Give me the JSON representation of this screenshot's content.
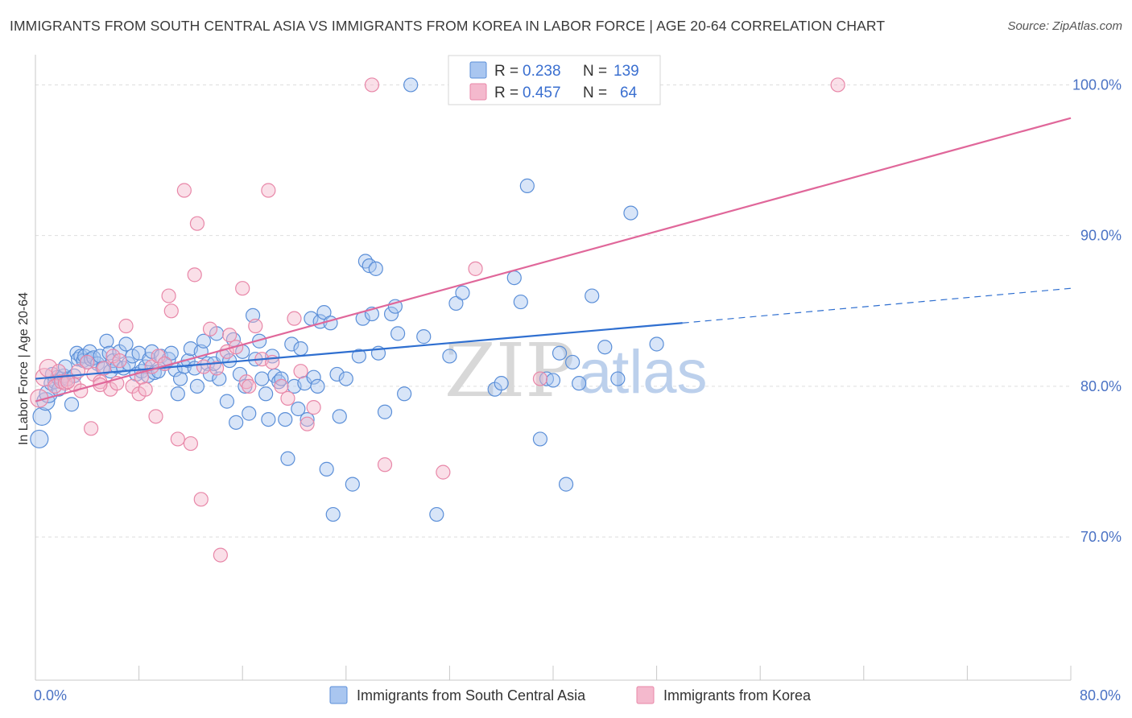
{
  "title": "IMMIGRANTS FROM SOUTH CENTRAL ASIA VS IMMIGRANTS FROM KOREA IN LABOR FORCE | AGE 20-64 CORRELATION CHART",
  "source": "Source: ZipAtlas.com",
  "watermark": {
    "part1": "ZIP",
    "part2": "atlas"
  },
  "colors": {
    "blue": "#5b8fd8",
    "blue_fill": "#a9c6f0",
    "pink": "#e887a8",
    "pink_fill": "#f4b9cd",
    "blue_line": "#2f6fd0",
    "pink_line": "#e0679a"
  },
  "legend_top": {
    "rows": [
      {
        "r_label": "R =",
        "r_value": "0.238",
        "n_label": "N =",
        "n_value": "139"
      },
      {
        "r_label": "R =",
        "r_value": "0.457",
        "n_label": "N =",
        "n_value": "64"
      }
    ]
  },
  "chart_data": {
    "type": "scatter",
    "title": "IMMIGRANTS FROM SOUTH CENTRAL ASIA VS IMMIGRANTS FROM KOREA IN LABOR FORCE | AGE 20-64 CORRELATION CHART",
    "xlabel": "",
    "ylabel": "In Labor Force | Age 20-64",
    "xlim": [
      0,
      80
    ],
    "ylim": [
      60.5,
      102
    ],
    "x_tick_labels": [
      "0.0%",
      "80.0%"
    ],
    "y_ticks": [
      70,
      80,
      90,
      100
    ],
    "y_tick_labels": [
      "70.0%",
      "80.0%",
      "90.0%",
      "100.0%"
    ],
    "grid": true,
    "legend_position": "bottom",
    "series": [
      {
        "name": "Immigrants from South Central Asia",
        "color": "#5b8fd8",
        "trend": {
          "x": [
            0,
            50
          ],
          "y": [
            80.5,
            84.2
          ],
          "dashed_to": [
            80,
            86.5
          ]
        },
        "points": [
          [
            0.3,
            76.5
          ],
          [
            0.5,
            78
          ],
          [
            0.8,
            79
          ],
          [
            1,
            79.5
          ],
          [
            1.2,
            80.2
          ],
          [
            1.3,
            80.8
          ],
          [
            1.5,
            80.3
          ],
          [
            1.7,
            80.6
          ],
          [
            1.8,
            79.8
          ],
          [
            2,
            80.5
          ],
          [
            2.2,
            80.7
          ],
          [
            2.3,
            81.3
          ],
          [
            2.5,
            80.5
          ],
          [
            2.8,
            78.8
          ],
          [
            3,
            80.7
          ],
          [
            3.2,
            82.2
          ],
          [
            3.3,
            81.8
          ],
          [
            3.5,
            82
          ],
          [
            3.7,
            81.7
          ],
          [
            3.8,
            82
          ],
          [
            4,
            81.6
          ],
          [
            4.2,
            82.3
          ],
          [
            4.3,
            81.8
          ],
          [
            4.5,
            81.9
          ],
          [
            4.8,
            81.5
          ],
          [
            5,
            82
          ],
          [
            5.2,
            81.2
          ],
          [
            5.5,
            83
          ],
          [
            5.7,
            82.2
          ],
          [
            5.8,
            81
          ],
          [
            6,
            81.7
          ],
          [
            6.3,
            81.3
          ],
          [
            6.5,
            82.3
          ],
          [
            6.8,
            81.2
          ],
          [
            7,
            82.8
          ],
          [
            7.2,
            81.5
          ],
          [
            7.5,
            82
          ],
          [
            7.8,
            80.8
          ],
          [
            8,
            82.2
          ],
          [
            8.2,
            81
          ],
          [
            8.5,
            81.3
          ],
          [
            8.7,
            80.7
          ],
          [
            8.8,
            81.8
          ],
          [
            9,
            82.3
          ],
          [
            9.2,
            80.9
          ],
          [
            9.5,
            81
          ],
          [
            9.7,
            82
          ],
          [
            10,
            81.5
          ],
          [
            10.3,
            81.8
          ],
          [
            10.5,
            82.2
          ],
          [
            10.8,
            81.1
          ],
          [
            11,
            79.5
          ],
          [
            11.2,
            80.5
          ],
          [
            11.5,
            81.3
          ],
          [
            11.8,
            81.7
          ],
          [
            12,
            82.5
          ],
          [
            12.3,
            81.2
          ],
          [
            12.5,
            80
          ],
          [
            12.8,
            82.3
          ],
          [
            13,
            83
          ],
          [
            13.3,
            81.5
          ],
          [
            13.5,
            80.8
          ],
          [
            13.8,
            81.5
          ],
          [
            14,
            83.5
          ],
          [
            14.2,
            80.5
          ],
          [
            14.5,
            82
          ],
          [
            14.8,
            79
          ],
          [
            15,
            81.7
          ],
          [
            15.3,
            83.1
          ],
          [
            15.5,
            77.6
          ],
          [
            15.8,
            80.8
          ],
          [
            16,
            82.3
          ],
          [
            16.2,
            80
          ],
          [
            16.5,
            78.2
          ],
          [
            16.8,
            84.7
          ],
          [
            17,
            81.8
          ],
          [
            17.3,
            83
          ],
          [
            17.5,
            80.5
          ],
          [
            17.8,
            79.5
          ],
          [
            18,
            77.8
          ],
          [
            18.3,
            82
          ],
          [
            18.5,
            80.7
          ],
          [
            18.8,
            80.3
          ],
          [
            19,
            80.5
          ],
          [
            19.3,
            77.8
          ],
          [
            19.5,
            75.2
          ],
          [
            19.8,
            82.8
          ],
          [
            20,
            80
          ],
          [
            20.3,
            78.5
          ],
          [
            20.5,
            82.5
          ],
          [
            20.8,
            80.2
          ],
          [
            21,
            77.8
          ],
          [
            21.3,
            84.5
          ],
          [
            21.5,
            80.6
          ],
          [
            21.8,
            80
          ],
          [
            22,
            84.3
          ],
          [
            22.3,
            84.9
          ],
          [
            22.5,
            74.5
          ],
          [
            22.8,
            84.2
          ],
          [
            23,
            71.5
          ],
          [
            23.3,
            80.8
          ],
          [
            23.5,
            78
          ],
          [
            24,
            80.5
          ],
          [
            24.5,
            73.5
          ],
          [
            25,
            82
          ],
          [
            25.3,
            84.5
          ],
          [
            25.5,
            88.3
          ],
          [
            25.8,
            88
          ],
          [
            26,
            84.8
          ],
          [
            26.3,
            87.8
          ],
          [
            26.5,
            82.2
          ],
          [
            27,
            78.3
          ],
          [
            27.5,
            84.8
          ],
          [
            27.8,
            85.3
          ],
          [
            28,
            83.5
          ],
          [
            28.5,
            79.5
          ],
          [
            29,
            100
          ],
          [
            30,
            83.3
          ],
          [
            31,
            71.5
          ],
          [
            32,
            82
          ],
          [
            32.5,
            85.5
          ],
          [
            33,
            86.2
          ],
          [
            35.5,
            79.8
          ],
          [
            36,
            80.2
          ],
          [
            37,
            87.2
          ],
          [
            37.5,
            85.6
          ],
          [
            38,
            93.3
          ],
          [
            39,
            76.5
          ],
          [
            39.5,
            80.5
          ],
          [
            40,
            80.4
          ],
          [
            40.5,
            82.2
          ],
          [
            41,
            73.5
          ],
          [
            41.5,
            81.6
          ],
          [
            42,
            80.2
          ],
          [
            43,
            86
          ],
          [
            44,
            82.6
          ],
          [
            45,
            80.5
          ],
          [
            46,
            91.5
          ],
          [
            48,
            82.8
          ]
        ]
      },
      {
        "name": "Immigrants from Korea",
        "color": "#e887a8",
        "trend": {
          "x": [
            0,
            80
          ],
          "y": [
            79,
            97.8
          ]
        },
        "points": [
          [
            0.3,
            79.2
          ],
          [
            0.7,
            80.6
          ],
          [
            1,
            81.2
          ],
          [
            1.5,
            80
          ],
          [
            1.8,
            81
          ],
          [
            2,
            80.3
          ],
          [
            2.3,
            80.2
          ],
          [
            3,
            80.1
          ],
          [
            3.5,
            79.7
          ],
          [
            4,
            81.6
          ],
          [
            4.3,
            77.2
          ],
          [
            4.5,
            80.8
          ],
          [
            5,
            80.3
          ],
          [
            5.3,
            81.2
          ],
          [
            5.8,
            79.8
          ],
          [
            6,
            82
          ],
          [
            6.3,
            80.2
          ],
          [
            6.5,
            81.7
          ],
          [
            7,
            84
          ],
          [
            7.5,
            80
          ],
          [
            8,
            79.5
          ],
          [
            8.2,
            80.6
          ],
          [
            8.5,
            79.8
          ],
          [
            9,
            81.3
          ],
          [
            9.3,
            78
          ],
          [
            9.5,
            82
          ],
          [
            10,
            81.5
          ],
          [
            10.3,
            86
          ],
          [
            10.5,
            85
          ],
          [
            11,
            76.5
          ],
          [
            11.5,
            93
          ],
          [
            12,
            76.2
          ],
          [
            12.3,
            87.4
          ],
          [
            12.5,
            90.8
          ],
          [
            12.8,
            72.5
          ],
          [
            13,
            81.3
          ],
          [
            13.5,
            83.8
          ],
          [
            14,
            81.2
          ],
          [
            14.3,
            68.8
          ],
          [
            14.8,
            82.3
          ],
          [
            15,
            83.4
          ],
          [
            15.5,
            82.6
          ],
          [
            16,
            86.5
          ],
          [
            16.3,
            80.3
          ],
          [
            16.5,
            80
          ],
          [
            17,
            84
          ],
          [
            17.5,
            81.8
          ],
          [
            18,
            93
          ],
          [
            18.3,
            81.6
          ],
          [
            19,
            80
          ],
          [
            19.5,
            79.2
          ],
          [
            20,
            84.5
          ],
          [
            20.5,
            81
          ],
          [
            21,
            77.5
          ],
          [
            21.5,
            78.6
          ],
          [
            26,
            100
          ],
          [
            27,
            74.8
          ],
          [
            31.5,
            74.3
          ],
          [
            34,
            87.8
          ],
          [
            39,
            80.5
          ],
          [
            62,
            100
          ],
          [
            2.5,
            80.3
          ],
          [
            3.3,
            81
          ],
          [
            5,
            80.1
          ]
        ]
      }
    ]
  },
  "legend_bottom": [
    {
      "label": "Immigrants from South Central Asia"
    },
    {
      "label": "Immigrants from Korea"
    }
  ]
}
